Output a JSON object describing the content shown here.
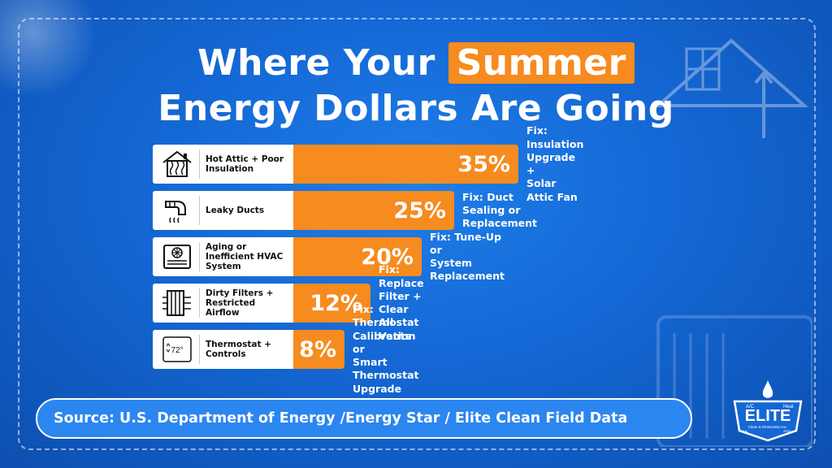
{
  "title": {
    "line1_before": "Where Your ",
    "highlight": "Summer",
    "line2": "Energy Dollars Are Going"
  },
  "chart_data": {
    "type": "bar",
    "orientation": "horizontal",
    "categories": [
      "Hot Attic + Poor Insulation",
      "Leaky Ducts",
      "Aging or Inefficient HVAC System",
      "Dirty Filters + Restricted Airflow",
      "Thermostat + Controls"
    ],
    "values": [
      35,
      25,
      20,
      12,
      8
    ],
    "value_labels": [
      "35%",
      "25%",
      "20%",
      "12%",
      "8%"
    ],
    "fixes": [
      "Fix: Insulation Upgrade +\nSolar Attic Fan",
      "Fix: Duct Sealing or\nReplacement",
      "Fix: Tune-Up or\nSystem Replacement",
      "Fix: Replace Filter +\nClear All Vents",
      "Fix: Thermostat Calibration or\nSmart Thermostat Upgrade"
    ],
    "icons": [
      "house-heat-icon",
      "duct-icon",
      "hvac-unit-icon",
      "air-filter-icon",
      "thermostat-icon"
    ],
    "thermostat_reading": "72°",
    "bar_color": "#f68b1f",
    "xlim": [
      0,
      35
    ]
  },
  "source": "Source: U.S. Department of Energy /Energy Star / Elite Clean Field Data",
  "logo": {
    "top_left": "A/C",
    "top_right": "Heat",
    "name": "ELITE",
    "sub": "Clean & Restoration Inc.",
    "est_left": "Est",
    "est_right": "2000"
  },
  "colors": {
    "background": "#1467d4",
    "accent": "#f68b1f"
  }
}
